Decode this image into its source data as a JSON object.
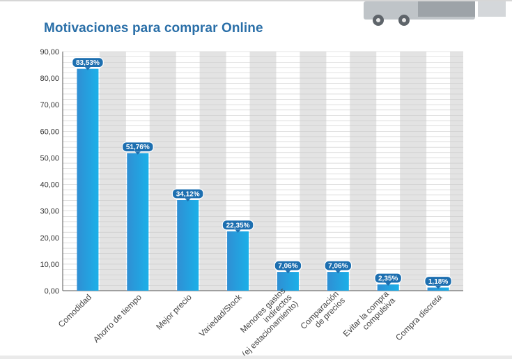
{
  "chart_data": {
    "type": "bar",
    "title": "Motivaciones para comprar Online",
    "xlabel": "",
    "ylabel": "",
    "ylim": [
      0,
      90
    ],
    "yticks": [
      "90,00",
      "80,00",
      "70,00",
      "60,00",
      "50,00",
      "40,00",
      "30,00",
      "20,00",
      "10,00",
      "0,00"
    ],
    "categories": [
      [
        "Comodidad"
      ],
      [
        "Ahorro de tiempo"
      ],
      [
        "Mejor precio"
      ],
      [
        "Variedad/Stock"
      ],
      [
        "Menores gastos",
        "indirectos",
        "(ej estacionamiento)"
      ],
      [
        "Comparación",
        "de precios"
      ],
      [
        "Evitar la compra",
        "compulsiva"
      ],
      [
        "Compra discreta"
      ]
    ],
    "values": [
      83.53,
      51.76,
      34.12,
      22.35,
      7.06,
      7.06,
      2.35,
      1.18
    ],
    "data_labels": [
      "83,53%",
      "51,76%",
      "34,12%",
      "22,35%",
      "7,06%",
      "7,06%",
      "2,35%",
      "1,18%"
    ],
    "grid": true,
    "colors": {
      "bar_top": "#2f8fd4",
      "bar_bottom": "#1bb0e8",
      "band": "#e3e3e3",
      "label_bg": "#1d6fb0",
      "title": "#2a6fa8"
    }
  }
}
